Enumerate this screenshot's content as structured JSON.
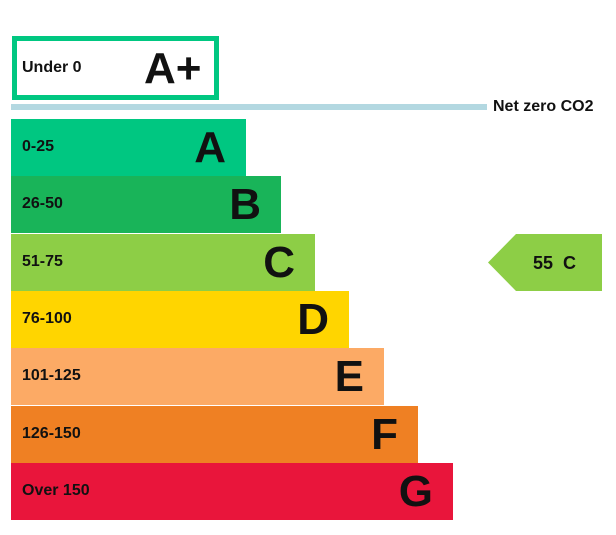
{
  "chart_data": {
    "type": "bar",
    "top_band": {
      "range": "Under 0",
      "rating": "A+",
      "color": "#00c781"
    },
    "net_zero_label": "Net zero CO2",
    "bands": [
      {
        "range": "0-25",
        "rating": "A",
        "color": "#00c781"
      },
      {
        "range": "26-50",
        "rating": "B",
        "color": "#19b459"
      },
      {
        "range": "51-75",
        "rating": "C",
        "color": "#8dce46"
      },
      {
        "range": "76-100",
        "rating": "D",
        "color": "#ffd500"
      },
      {
        "range": "101-125",
        "rating": "E",
        "color": "#fcaa65"
      },
      {
        "range": "126-150",
        "rating": "F",
        "color": "#ef8023"
      },
      {
        "range": "Over 150",
        "rating": "G",
        "color": "#e9153b"
      }
    ],
    "current": {
      "value": 55,
      "rating": "C",
      "label": "55  C",
      "color": "#8dce46"
    }
  }
}
